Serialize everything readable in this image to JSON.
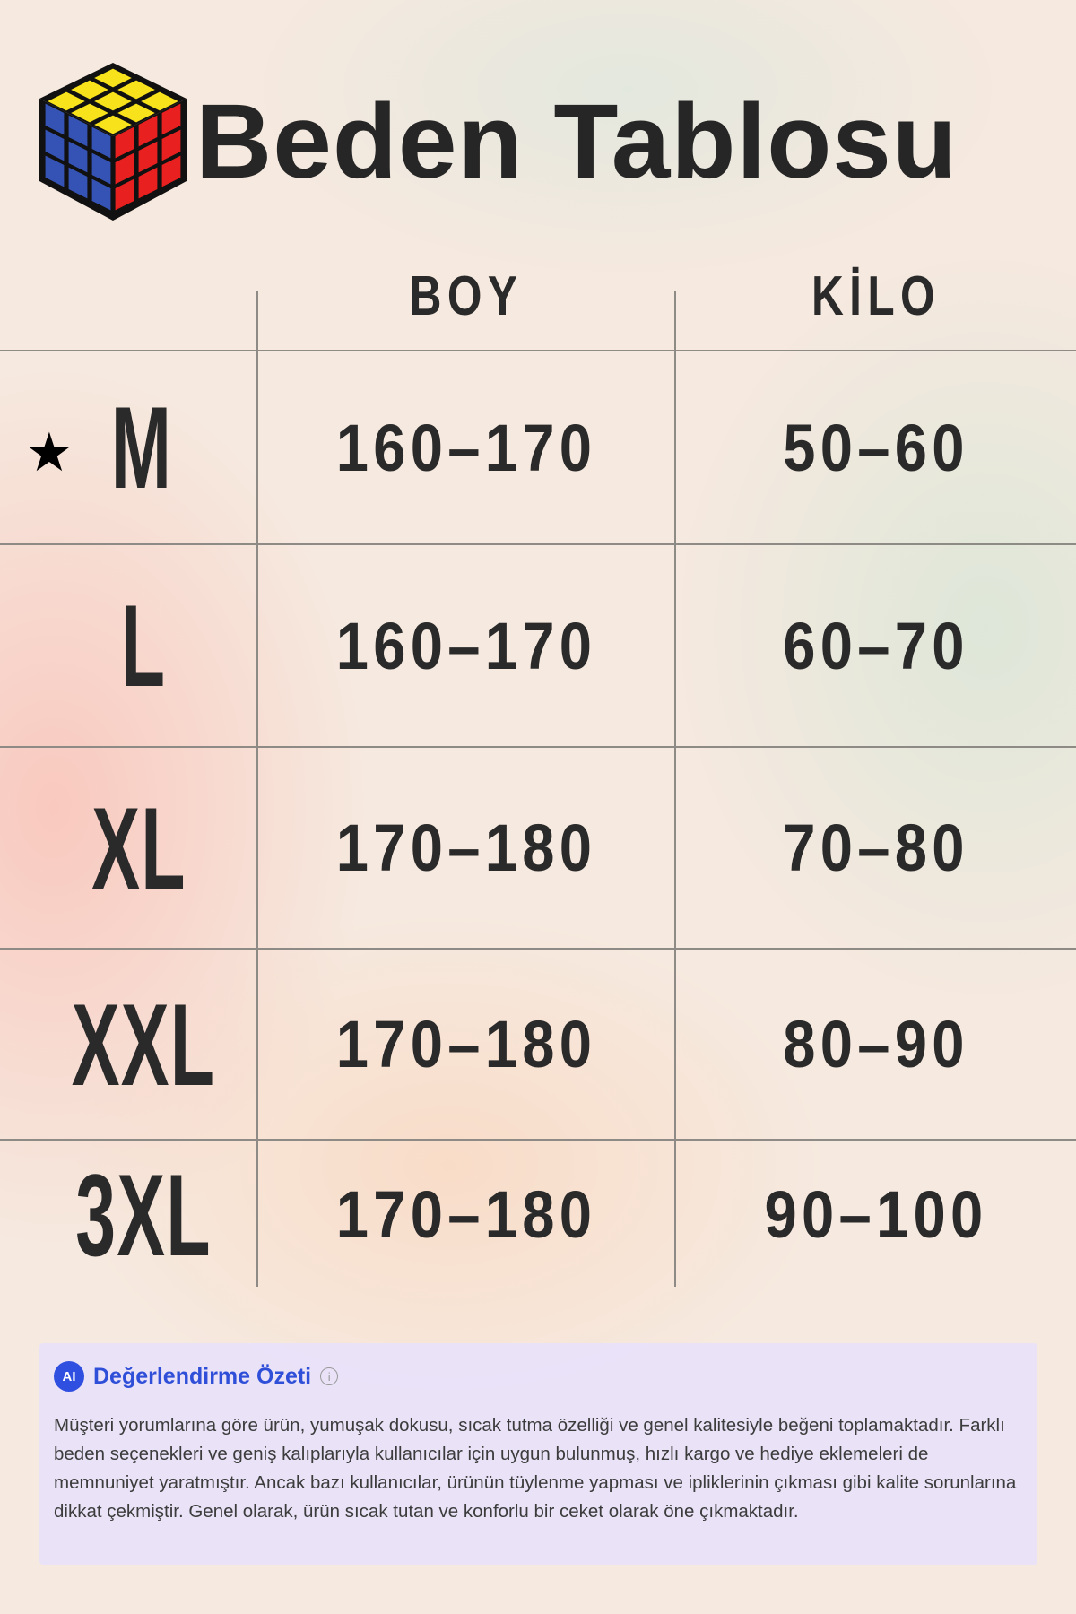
{
  "title": "Beden Tablosu",
  "table": {
    "headers": [
      "BOY",
      "KİLO"
    ],
    "rows": [
      {
        "size": "M",
        "boy": "160-170",
        "kilo": "50-60",
        "starred": true
      },
      {
        "size": "L",
        "boy": "160-170",
        "kilo": "60-70"
      },
      {
        "size": "XL",
        "boy": "170-180",
        "kilo": "70-80"
      },
      {
        "size": "XXL",
        "boy": "170-180",
        "kilo": "80-90"
      },
      {
        "size": "3XL",
        "boy": "170-180",
        "kilo": "90-100"
      }
    ]
  },
  "summary": {
    "icon_label": "AI",
    "title": "Değerlendirme Özeti",
    "text": "Müşteri yorumlarına göre ürün, yumuşak dokusu, sıcak tutma özelliği ve genel kalitesiyle beğeni toplamaktadır. Farklı beden seçenekleri ve geniş kalıplarıyla kullanıcılar için uygun bulunmuş, hızlı kargo ve hediye eklemeleri de memnuniyet yaratmıştır. Ancak bazı kullanıcılar, ürünün tüylenme yapması ve ipliklerinin çıkması gibi kalite sorunlarına dikkat çekmiştir. Genel olarak, ürün sıcak tutan ve konforlu bir ceket olarak öne çıkmaktadır."
  },
  "colors": {
    "accent": "#2f4fd8",
    "cube_top": "#f7e21b",
    "cube_left": "#3553b5",
    "cube_right": "#e8201f"
  }
}
